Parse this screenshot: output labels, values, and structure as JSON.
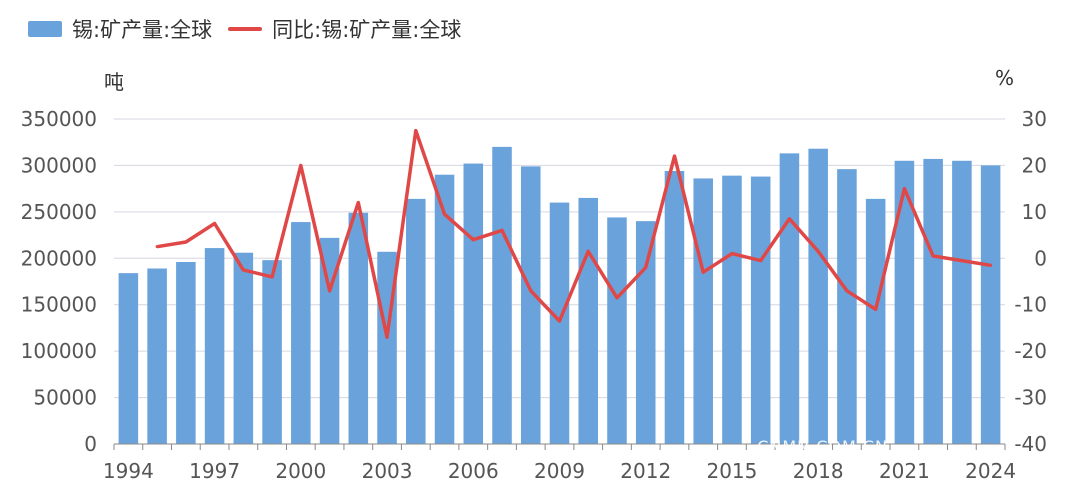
{
  "legend": {
    "bar_label": "锡:矿产量:全球",
    "line_label": "同比:锡:矿产量:全球"
  },
  "units": {
    "left": "吨",
    "right": "%"
  },
  "watermark": "CNMN.COM.CN",
  "colors": {
    "bar": "#6aa3dc",
    "line": "#e04848",
    "grid": "#d6d6e2",
    "axis_text": "#555555"
  },
  "chart_data": {
    "type": "bar",
    "categories": [
      1994,
      1995,
      1996,
      1997,
      1998,
      1999,
      2000,
      2001,
      2002,
      2003,
      2004,
      2005,
      2006,
      2007,
      2008,
      2009,
      2010,
      2011,
      2012,
      2013,
      2014,
      2015,
      2016,
      2017,
      2018,
      2019,
      2020,
      2021,
      2022,
      2023,
      2024
    ],
    "x_tick_labels": [
      "1994",
      "1997",
      "2000",
      "2003",
      "2006",
      "2009",
      "2012",
      "2015",
      "2018",
      "2021",
      "2024"
    ],
    "series": [
      {
        "name": "锡:矿产量:全球",
        "type": "bar",
        "axis": "left",
        "values": [
          184000,
          189000,
          196000,
          211000,
          206000,
          198000,
          239000,
          222000,
          249000,
          207000,
          264000,
          290000,
          302000,
          320000,
          299000,
          260000,
          265000,
          244000,
          240000,
          294000,
          286000,
          289000,
          288000,
          313000,
          318000,
          296000,
          264000,
          305000,
          307000,
          305000,
          300000
        ]
      },
      {
        "name": "同比:锡:矿产量:全球",
        "type": "line",
        "axis": "right",
        "values": [
          null,
          2.5,
          3.5,
          7.5,
          -2.5,
          -4,
          20,
          -7,
          12,
          -17,
          27.5,
          9.5,
          4,
          6,
          -7,
          -13.5,
          1.5,
          -8.5,
          -2,
          22,
          -3,
          1,
          -0.5,
          8.5,
          1.5,
          -7,
          -11,
          15,
          0.5,
          -0.5,
          -1.5
        ]
      }
    ],
    "y_left": {
      "min": 0,
      "max": 350000,
      "ticks": [
        0,
        50000,
        100000,
        150000,
        200000,
        250000,
        300000,
        350000
      ],
      "tick_labels": [
        "0",
        "50000",
        "100000",
        "150000",
        "200000",
        "250000",
        "300000",
        "350000"
      ]
    },
    "y_right": {
      "min": -40,
      "max": 30,
      "ticks": [
        -40,
        -30,
        -20,
        -10,
        0,
        10,
        20,
        30
      ],
      "tick_labels": [
        "-40",
        "-30",
        "-20",
        "-10",
        "0",
        "10",
        "20",
        "30"
      ]
    },
    "grid": true,
    "legend_position": "top-left"
  }
}
